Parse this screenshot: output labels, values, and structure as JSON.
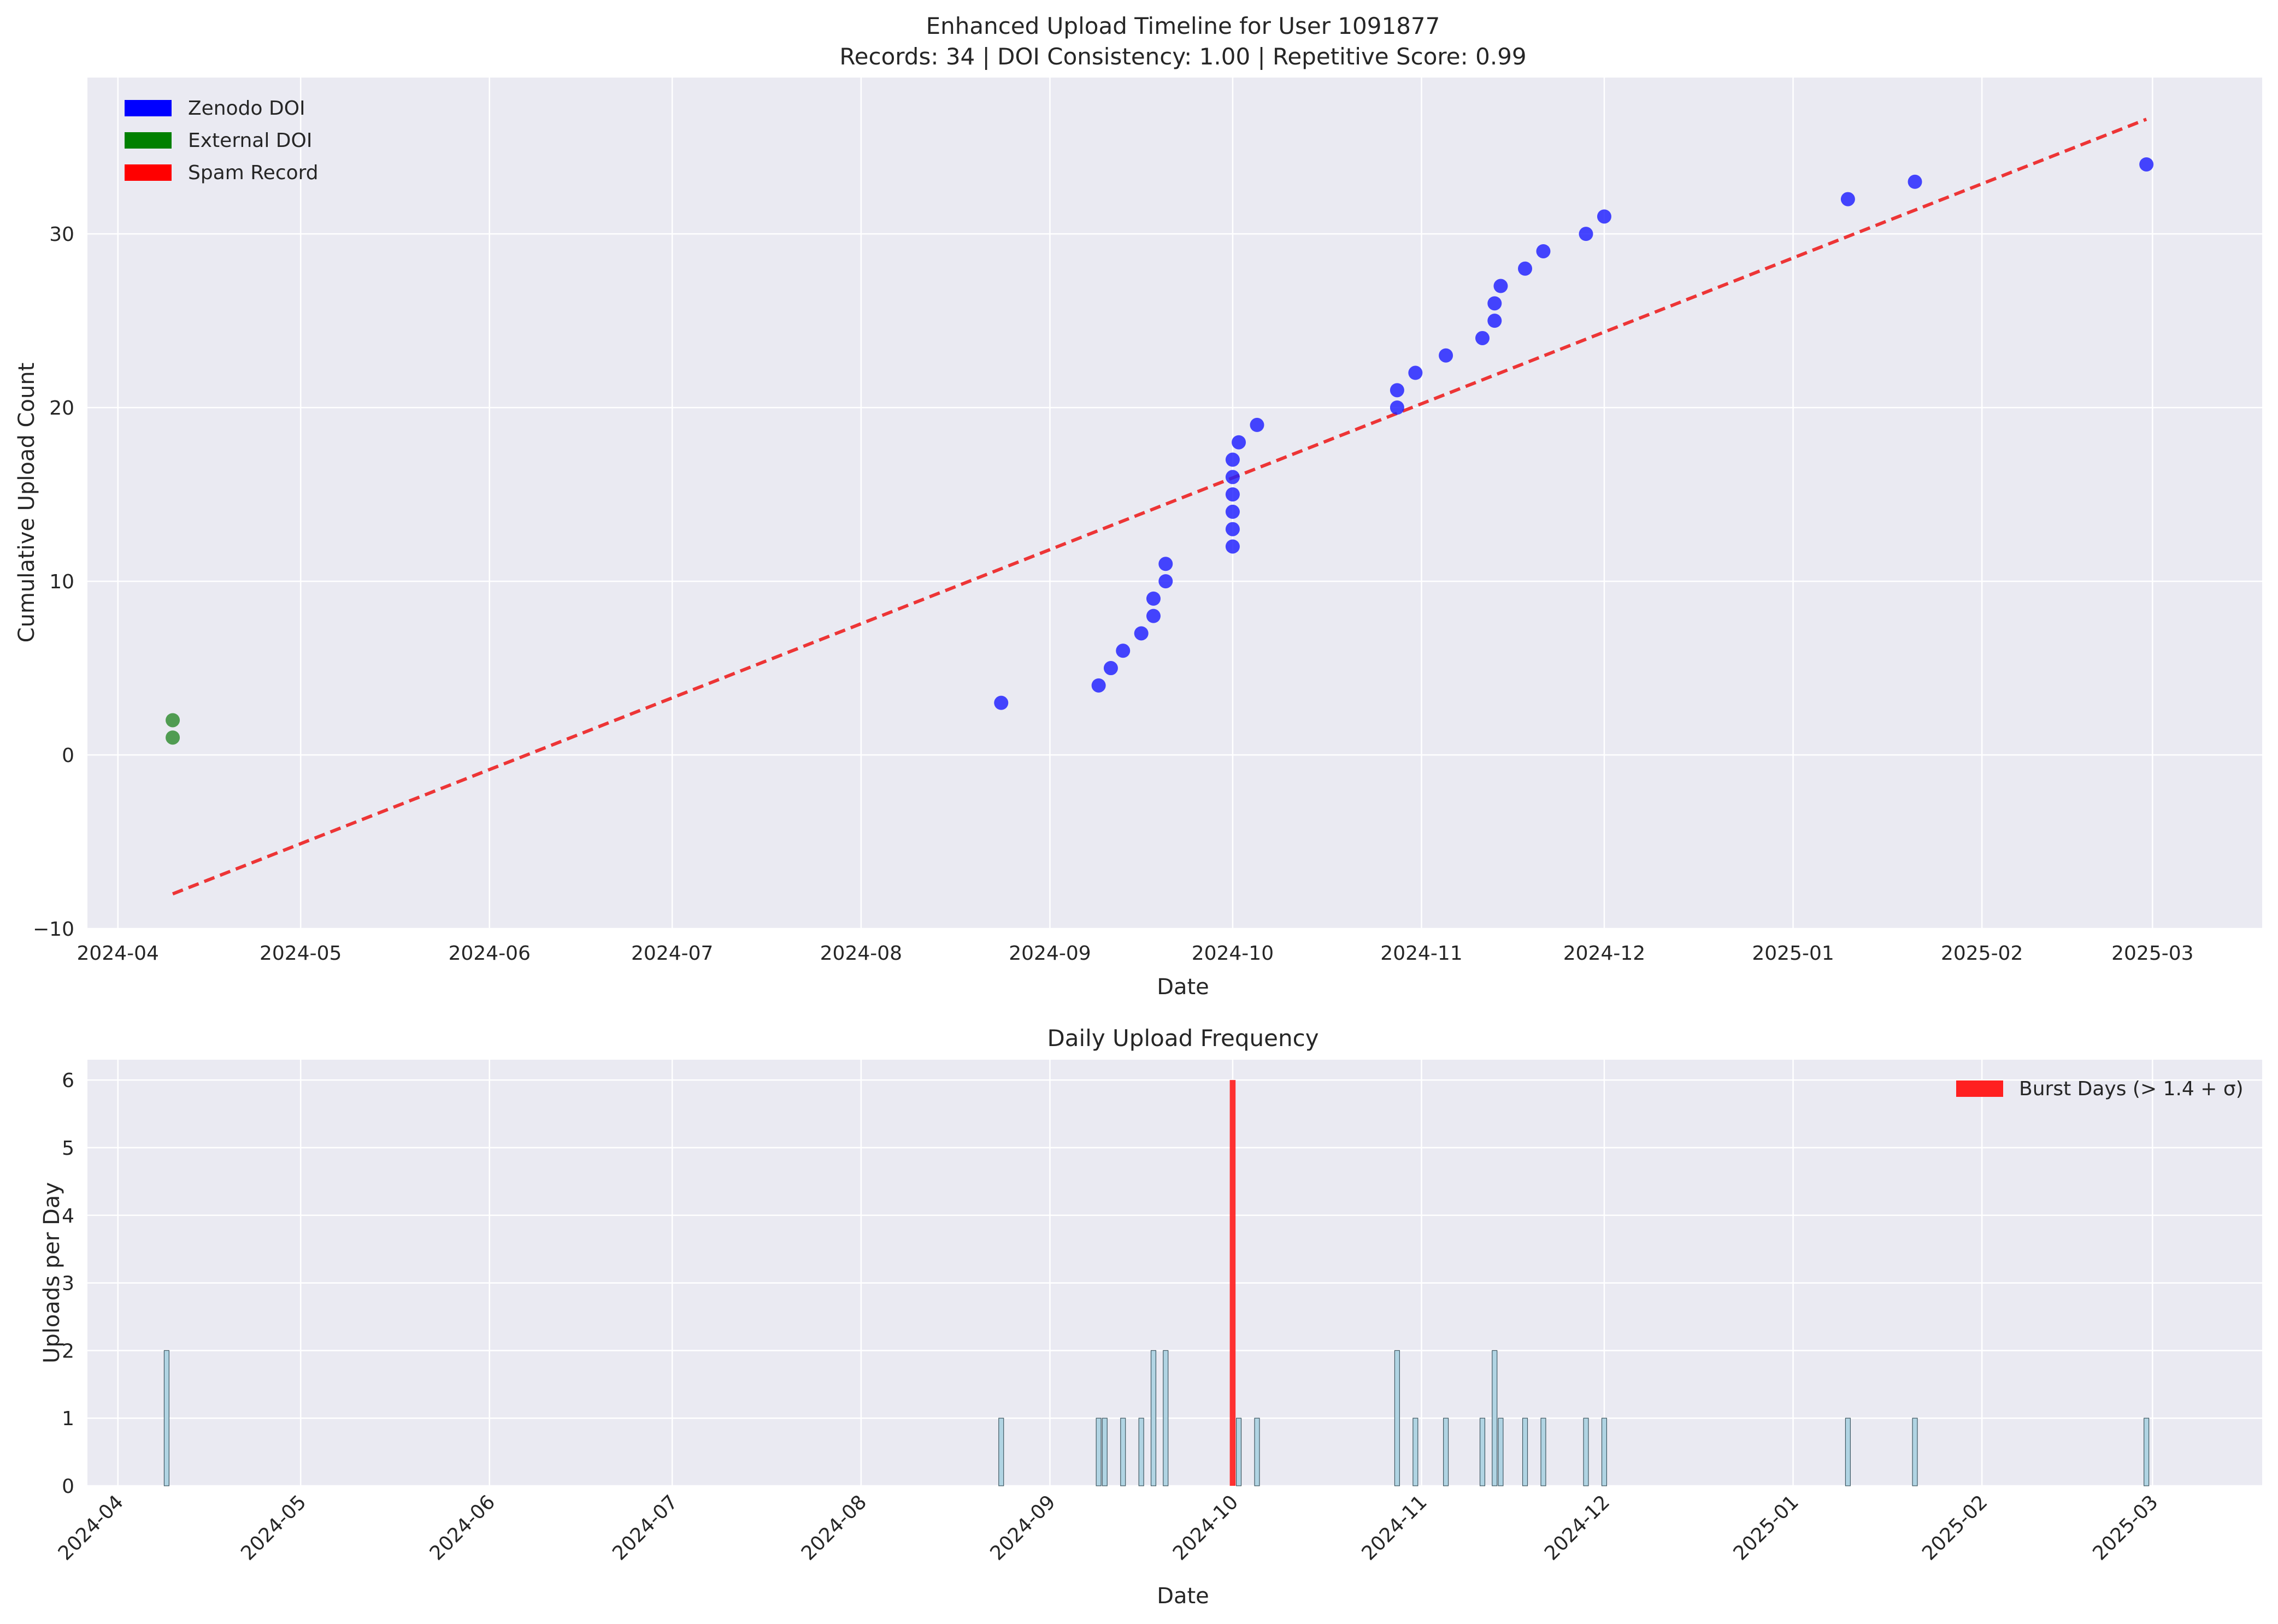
{
  "chart_data": [
    {
      "type": "scatter",
      "title": "Enhanced Upload Timeline for User 1091877",
      "subtitle": "Records: 34 | DOI Consistency: 1.00 | Repetitive Score: 0.99",
      "xlabel": "Date",
      "ylabel": "Cumulative Upload Count",
      "xlim": [
        "2024-03-27",
        "2025-03-19"
      ],
      "ylim": [
        -10,
        39
      ],
      "xticks": [
        "2024-04",
        "2024-05",
        "2024-06",
        "2024-07",
        "2024-08",
        "2024-09",
        "2024-10",
        "2024-11",
        "2024-12",
        "2025-01",
        "2025-02",
        "2025-03"
      ],
      "yticks": [
        -10,
        0,
        10,
        20,
        30
      ],
      "grid": true,
      "legend": {
        "placement": "top-left",
        "entries": [
          {
            "label": "Zenodo DOI",
            "color": "#0000ff"
          },
          {
            "label": "External DOI",
            "color": "#008000"
          },
          {
            "label": "Spam Record",
            "color": "#ff0000"
          }
        ]
      },
      "series": [
        {
          "color": "#1f1fff",
          "points": [
            {
              "x": "2024-04-10",
              "y": 1,
              "color": "#2e8b2e"
            },
            {
              "x": "2024-04-10",
              "y": 2,
              "color": "#2e8b2e"
            },
            {
              "x": "2024-08-24",
              "y": 3
            },
            {
              "x": "2024-09-09",
              "y": 4
            },
            {
              "x": "2024-09-11",
              "y": 5
            },
            {
              "x": "2024-09-13",
              "y": 6
            },
            {
              "x": "2024-09-16",
              "y": 7
            },
            {
              "x": "2024-09-18",
              "y": 8
            },
            {
              "x": "2024-09-18",
              "y": 9
            },
            {
              "x": "2024-09-20",
              "y": 10
            },
            {
              "x": "2024-09-20",
              "y": 11
            },
            {
              "x": "2024-10-01",
              "y": 12
            },
            {
              "x": "2024-10-01",
              "y": 13
            },
            {
              "x": "2024-10-01",
              "y": 14
            },
            {
              "x": "2024-10-01",
              "y": 15
            },
            {
              "x": "2024-10-01",
              "y": 16
            },
            {
              "x": "2024-10-01",
              "y": 17
            },
            {
              "x": "2024-10-02",
              "y": 18
            },
            {
              "x": "2024-10-05",
              "y": 19
            },
            {
              "x": "2024-10-28",
              "y": 20
            },
            {
              "x": "2024-10-28",
              "y": 21
            },
            {
              "x": "2024-10-31",
              "y": 22
            },
            {
              "x": "2024-11-05",
              "y": 23
            },
            {
              "x": "2024-11-11",
              "y": 24
            },
            {
              "x": "2024-11-13",
              "y": 25
            },
            {
              "x": "2024-11-13",
              "y": 26
            },
            {
              "x": "2024-11-14",
              "y": 27
            },
            {
              "x": "2024-11-18",
              "y": 28
            },
            {
              "x": "2024-11-21",
              "y": 29
            },
            {
              "x": "2024-11-28",
              "y": 30
            },
            {
              "x": "2024-12-01",
              "y": 31
            },
            {
              "x": "2025-01-10",
              "y": 32
            },
            {
              "x": "2025-01-21",
              "y": 33
            },
            {
              "x": "2025-02-28",
              "y": 34
            }
          ]
        }
      ],
      "trend_line": {
        "color": "#ee2222",
        "style": "dashed",
        "start": {
          "x": "2024-04-10",
          "y": -8
        },
        "end": {
          "x": "2025-02-28",
          "y": 36.6
        }
      }
    },
    {
      "type": "bar",
      "title": "Daily Upload Frequency",
      "xlabel": "Date",
      "ylabel": "Uploads per Day",
      "xlim": [
        "2024-03-27",
        "2025-03-19"
      ],
      "ylim": [
        0,
        6.3
      ],
      "xticks": [
        "2024-04",
        "2024-05",
        "2024-06",
        "2024-07",
        "2024-08",
        "2024-09",
        "2024-10",
        "2024-11",
        "2024-12",
        "2025-01",
        "2025-02",
        "2025-03"
      ],
      "yticks": [
        0,
        1,
        2,
        3,
        4,
        5,
        6
      ],
      "grid": true,
      "legend": {
        "placement": "top-right",
        "entries": [
          {
            "label": "Burst Days (> 1.4 + σ)",
            "color": "#ff2020"
          }
        ]
      },
      "colors": {
        "normal": "#b0d4e3",
        "burst": "#ff2020"
      },
      "bars": [
        {
          "x": "2024-04-09",
          "value": 2
        },
        {
          "x": "2024-08-24",
          "value": 1
        },
        {
          "x": "2024-09-09",
          "value": 1
        },
        {
          "x": "2024-09-10",
          "value": 1
        },
        {
          "x": "2024-09-13",
          "value": 1
        },
        {
          "x": "2024-09-16",
          "value": 1
        },
        {
          "x": "2024-09-18",
          "value": 2
        },
        {
          "x": "2024-09-20",
          "value": 2
        },
        {
          "x": "2024-10-01",
          "value": 6,
          "burst": true
        },
        {
          "x": "2024-10-02",
          "value": 1
        },
        {
          "x": "2024-10-05",
          "value": 1
        },
        {
          "x": "2024-10-28",
          "value": 2
        },
        {
          "x": "2024-10-31",
          "value": 1
        },
        {
          "x": "2024-11-05",
          "value": 1
        },
        {
          "x": "2024-11-11",
          "value": 1
        },
        {
          "x": "2024-11-13",
          "value": 2
        },
        {
          "x": "2024-11-14",
          "value": 1
        },
        {
          "x": "2024-11-18",
          "value": 1
        },
        {
          "x": "2024-11-21",
          "value": 1
        },
        {
          "x": "2024-11-28",
          "value": 1
        },
        {
          "x": "2024-12-01",
          "value": 1
        },
        {
          "x": "2025-01-10",
          "value": 1
        },
        {
          "x": "2025-01-21",
          "value": 1
        },
        {
          "x": "2025-02-28",
          "value": 1
        }
      ]
    }
  ]
}
